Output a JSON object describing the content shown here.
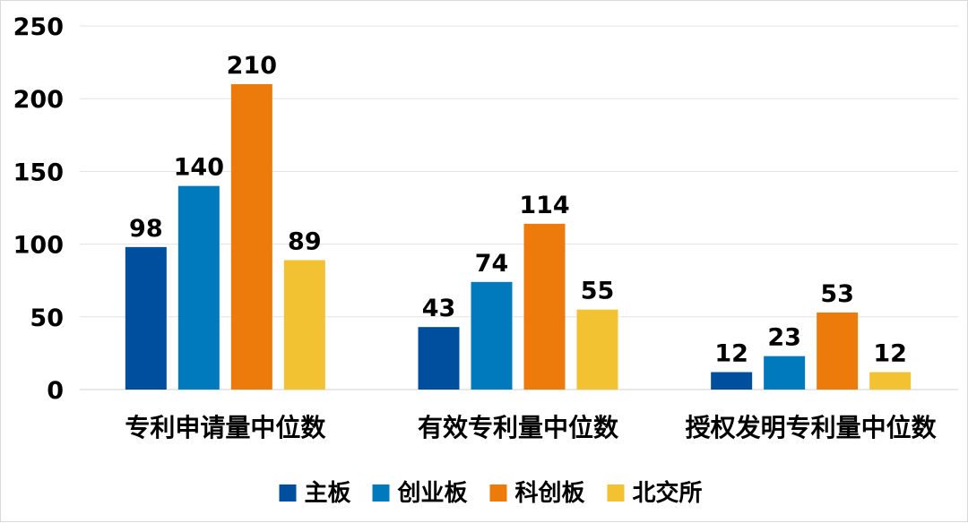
{
  "chart_data": {
    "type": "bar",
    "categories": [
      "专利申请量中位数",
      "有效专利量中位数",
      "授权发明专利量中位数"
    ],
    "series": [
      {
        "name": "主板",
        "values": [
          98,
          43,
          12
        ]
      },
      {
        "name": "创业板",
        "values": [
          140,
          74,
          23
        ]
      },
      {
        "name": "科创板",
        "values": [
          210,
          114,
          53
        ]
      },
      {
        "name": "北交所",
        "values": [
          89,
          55,
          12
        ]
      }
    ],
    "colors": [
      "#004f9e",
      "#0079bd",
      "#ec7b0b",
      "#f2c233"
    ],
    "ylim": [
      0,
      250
    ],
    "yticks": [
      0,
      50,
      100,
      150,
      200,
      250
    ],
    "ytick_labels": [
      "0",
      "50",
      "100",
      "150",
      "200",
      "250"
    ],
    "grid": true,
    "legend": "bottom-center",
    "data_labels": true
  }
}
